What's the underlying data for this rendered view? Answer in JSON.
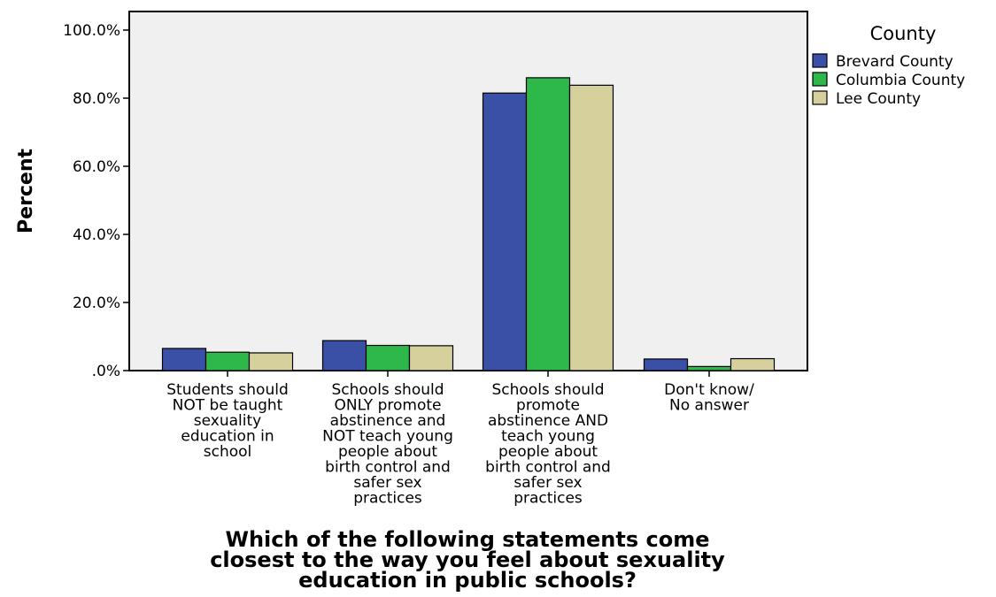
{
  "chart_data": {
    "type": "bar",
    "ylabel": "Percent",
    "xlabel": [
      "Which of the following statements come",
      "closest to the way you feel about sexuality",
      "education in public schools?"
    ],
    "ylim": [
      0,
      100
    ],
    "yticks": [
      {
        "value": 0,
        "label": ".0%"
      },
      {
        "value": 20,
        "label": "20.0%"
      },
      {
        "value": 40,
        "label": "40.0%"
      },
      {
        "value": 60,
        "label": "60.0%"
      },
      {
        "value": 80,
        "label": "80.0%"
      },
      {
        "value": 100,
        "label": "100.0%"
      }
    ],
    "categories": [
      [
        "Students should",
        "NOT be taught",
        "sexuality",
        "education in",
        "school"
      ],
      [
        "Schools should",
        "ONLY promote",
        "abstinence and",
        "NOT teach young",
        "people about",
        "birth control and",
        "safer sex",
        "practices"
      ],
      [
        "Schools should",
        "promote",
        "abstinence AND",
        "teach young",
        "people about",
        "birth control and",
        "safer sex",
        "practices"
      ],
      [
        "Don't know/",
        "No answer"
      ]
    ],
    "legend_title": "County",
    "legend_position": "right",
    "grid": false,
    "series": [
      {
        "name": "Brevard County",
        "color": "#3a4fa6",
        "values": [
          6.5,
          8.8,
          81.5,
          3.4
        ]
      },
      {
        "name": "Columbia County",
        "color": "#2fb84a",
        "values": [
          5.4,
          7.4,
          86.0,
          1.2
        ]
      },
      {
        "name": "Lee County",
        "color": "#d6d19c",
        "values": [
          5.2,
          7.3,
          83.8,
          3.5
        ]
      }
    ]
  }
}
